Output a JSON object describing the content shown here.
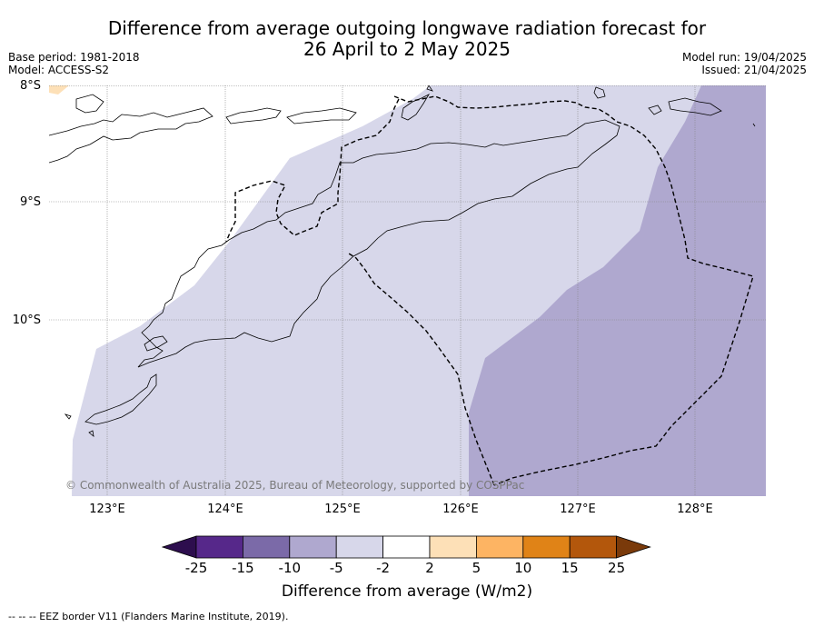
{
  "title_line1": "Difference from average outgoing longwave radiation forecast for",
  "title_line2": "26 April to 2 May 2025",
  "base_period": "Base period: 1981-2018",
  "model": "Model: ACCESS-S2",
  "model_run": "Model run: 19/04/2025",
  "issued": "Issued: 21/04/2025",
  "lat_labels": [
    "8°S",
    "9°S",
    "10°S"
  ],
  "lon_labels": [
    "123°E",
    "124°E",
    "125°E",
    "126°E",
    "127°E",
    "128°E"
  ],
  "copyright": "© Commonwealth of Australia 2025, Bureau of Meteorology, supported by COSPPac",
  "colorbar": {
    "title": "Difference from average (W/m2)",
    "tick_labels": [
      "-25",
      "-15",
      "-10",
      "-5",
      "-2",
      "2",
      "5",
      "10",
      "15",
      "25"
    ],
    "colors": [
      "#2d0e4e",
      "#56288a",
      "#7b6aa8",
      "#afa8cf",
      "#d7d7ea",
      "#ffffff",
      "#fde0b7",
      "#fdb463",
      "#e08317",
      "#b3570c",
      "#7a3a0a"
    ]
  },
  "footnote": "--  --  -- EEZ border V11 (Flanders Marine Institute, 2019)."
}
